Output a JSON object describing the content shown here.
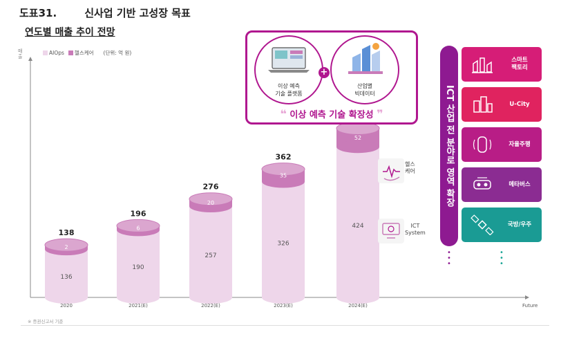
{
  "header": {
    "number": "도표31.",
    "title": "신사업 기반 고성장 목표"
  },
  "subtitle": "연도별 매출 추이 전망",
  "unit_axis_label": "매출",
  "legend": {
    "s1": "AIOps",
    "s2": "헬스케어",
    "unit": "(단위: 억 원)"
  },
  "footnote": "※ 증권신고서 기준",
  "colors": {
    "aiops": "#eed6ea",
    "health": "#c97bb8",
    "accent": "#b0178f",
    "banner": "#8e1a91"
  },
  "chart_data": {
    "type": "bar",
    "stacked": true,
    "categories": [
      "2020",
      "2021(E)",
      "2022(E)",
      "2023(E)",
      "2024(E)"
    ],
    "series": [
      {
        "name": "AIOps",
        "values": [
          136,
          190,
          257,
          326,
          424
        ]
      },
      {
        "name": "헬스케어",
        "values": [
          2,
          6,
          20,
          35,
          52
        ]
      }
    ],
    "totals": [
      138,
      196,
      276,
      362,
      477
    ],
    "x_end_label": "Future",
    "ylim": [
      0,
      500
    ]
  },
  "side_labels": {
    "health": "헬스\n케어",
    "ict": "ICT\nSystem"
  },
  "callout": {
    "left_caption": "이상 예측\n기술 플랫폼",
    "right_caption": "산업별\n빅데이터",
    "tagline": "이상 예측 기술 확장성"
  },
  "banner_text": "ICT 산업 전 분야로 영역 확장",
  "tiles": [
    {
      "label": "스마트\n팩토리",
      "icon": "factory-robot-icon",
      "color": "#d61d77"
    },
    {
      "label": "U-City",
      "icon": "city-icon",
      "color": "#e0235f"
    },
    {
      "label": "자율주행",
      "icon": "car-icon",
      "color": "#b81d86"
    },
    {
      "label": "메타버스",
      "icon": "vr-headset-icon",
      "color": "#8b2c92"
    },
    {
      "label": "국방/우주",
      "icon": "satellite-icon",
      "color": "#1a9b94"
    }
  ]
}
